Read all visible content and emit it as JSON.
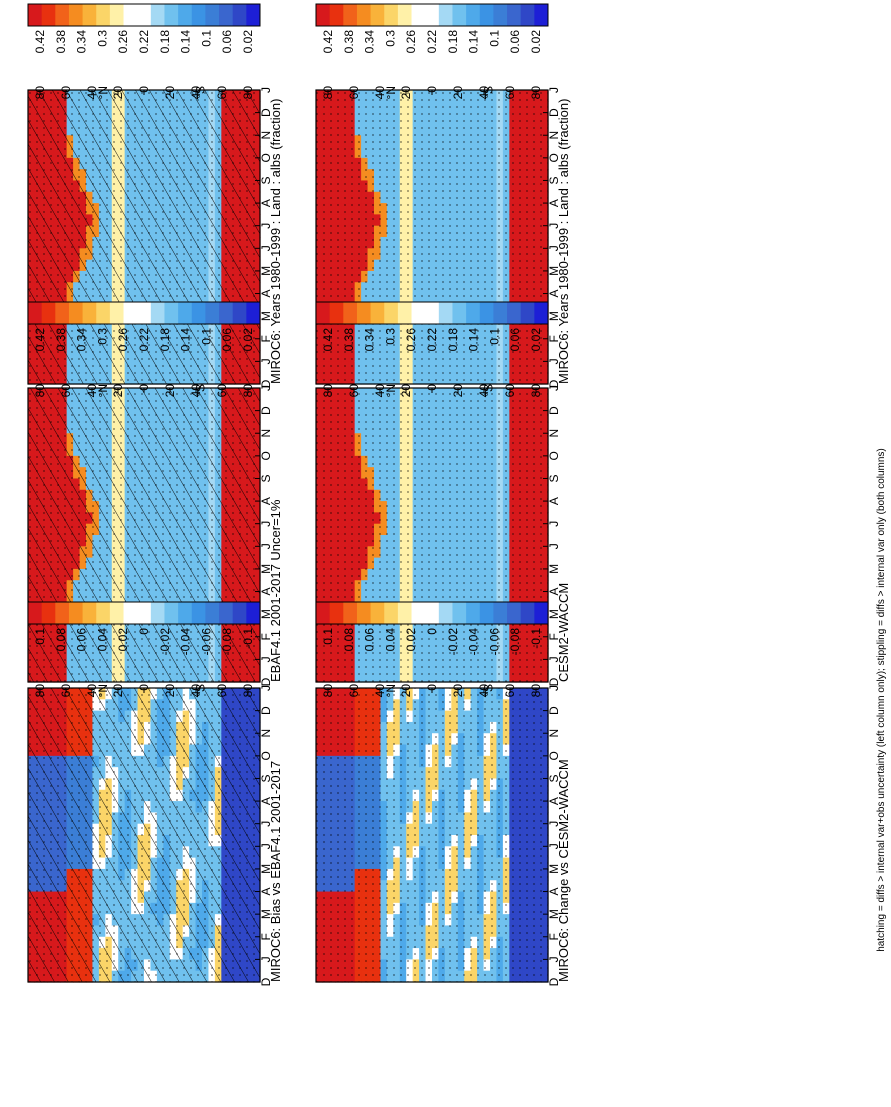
{
  "footnote": "hatching = diffs > internal var+obs uncertainty (left column only); stippling = diffs > internal var only (both columns)",
  "month_labels": [
    "D",
    "J",
    "F",
    "M",
    "A",
    "M",
    "J",
    "J",
    "A",
    "S",
    "O",
    "N",
    "D",
    "J"
  ],
  "lat_labels": [
    "80",
    "60",
    "40",
    "20",
    "0",
    "20",
    "40",
    "60",
    "80"
  ],
  "hemisphere_labels": {
    "north": "°N",
    "south": "°S"
  },
  "colors": {
    "mean_scale": [
      "#d7191c",
      "#e8310f",
      "#f1621a",
      "#f58c20",
      "#f9b23a",
      "#fbd568",
      "#fff1a8",
      "#ffffff",
      "#ffffff",
      "#a4d9f4",
      "#70c1ee",
      "#4ea9ea",
      "#3b93e4",
      "#3b7ed6",
      "#3a66ce",
      "#2f47c7",
      "#1d1fd6"
    ],
    "diff_scale": [
      "#d7191c",
      "#e8310f",
      "#f1621a",
      "#f58c20",
      "#f9b23a",
      "#fbd568",
      "#fff1a8",
      "#ffffff",
      "#ffffff",
      "#a4d9f4",
      "#70c1ee",
      "#4ea9ea",
      "#3b93e4",
      "#3b7ed6",
      "#3a66ce",
      "#2f47c7",
      "#1d1fd6"
    ]
  },
  "chart_data": [
    {
      "id": "p1",
      "type": "heatmap",
      "column": "left",
      "row": 1,
      "title": "MIROC6: Years 1980-1999 : Land : albs (fraction)",
      "field": "mean",
      "x": "month (Dec..Jan)",
      "y": "latitude (90S..90N)",
      "colorbar": {
        "labels": [
          "0.42",
          "0.38",
          "0.34",
          "0.3",
          "0.26",
          "0.22",
          "0.18",
          "0.14",
          "0.1",
          "0.06",
          "0.02"
        ]
      },
      "overlay": "hatching and stippling"
    },
    {
      "id": "p2",
      "type": "heatmap",
      "column": "left",
      "row": 2,
      "title": "EBAF4.1 2001-2017 Uncer=1%",
      "field": "mean",
      "x": "month (Dec..Jan)",
      "y": "latitude (90S..90N)",
      "colorbar": {
        "labels": [
          "0.42",
          "0.38",
          "0.34",
          "0.3",
          "0.26",
          "0.22",
          "0.18",
          "0.14",
          "0.1",
          "0.06",
          "0.02"
        ]
      },
      "overlay": "hatching and stippling"
    },
    {
      "id": "p3",
      "type": "heatmap",
      "column": "left",
      "row": 3,
      "title": "MIROC6: Bias vs EBAF4.1 2001-2017",
      "field": "diff",
      "x": "month (Dec..Jan)",
      "y": "latitude (90S..90N)",
      "colorbar": {
        "labels": [
          "0.1",
          "0.08",
          "0.06",
          "0.04",
          "0.02",
          "0",
          "-0.02",
          "-0.04",
          "-0.06",
          "-0.08",
          "-0.1"
        ]
      },
      "overlay": "hatching and stippling"
    },
    {
      "id": "p4",
      "type": "heatmap",
      "column": "right",
      "row": 1,
      "title": "MIROC6: Years 1980-1999 : Land : albs (fraction)",
      "field": "mean",
      "x": "month (Dec..Jan)",
      "y": "latitude (90S..90N)",
      "colorbar": {
        "labels": [
          "0.42",
          "0.38",
          "0.34",
          "0.3",
          "0.26",
          "0.22",
          "0.18",
          "0.14",
          "0.1",
          "0.06",
          "0.02"
        ]
      },
      "overlay": "stippling"
    },
    {
      "id": "p5",
      "type": "heatmap",
      "column": "right",
      "row": 2,
      "title": "CESM2-WACCM",
      "field": "mean",
      "x": "month (Dec..Jan)",
      "y": "latitude (90S..90N)",
      "colorbar": {
        "labels": [
          "0.42",
          "0.38",
          "0.34",
          "0.3",
          "0.26",
          "0.22",
          "0.18",
          "0.14",
          "0.1",
          "0.06",
          "0.02"
        ]
      },
      "overlay": "stippling"
    },
    {
      "id": "p6",
      "type": "heatmap",
      "column": "right",
      "row": 3,
      "title": "MIROC6: Change vs CESM2-WACCM",
      "field": "diff",
      "x": "month (Dec..Jan)",
      "y": "latitude (90S..90N)",
      "colorbar": {
        "labels": [
          "0.1",
          "0.08",
          "0.06",
          "0.04",
          "0.02",
          "0",
          "-0.02",
          "-0.04",
          "-0.06",
          "-0.08",
          "-0.1"
        ]
      },
      "overlay": "stippling"
    }
  ]
}
